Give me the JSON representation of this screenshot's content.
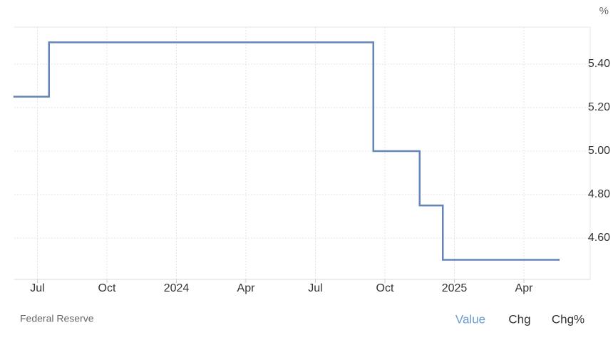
{
  "chart_data": {
    "type": "line",
    "step": true,
    "unit": "%",
    "x": [
      "2023-06",
      "2023-07",
      "2024-09",
      "2024-11",
      "2024-12",
      "2025-05"
    ],
    "values": [
      5.25,
      5.5,
      5.0,
      4.75,
      4.5,
      4.5
    ],
    "color": "#6585b8",
    "xlim": [
      "2023-06",
      "2025-06"
    ],
    "xticks": [
      {
        "value": "2023-07",
        "label": "Jul"
      },
      {
        "value": "2023-10",
        "label": "Oct"
      },
      {
        "value": "2024-01",
        "label": "2024"
      },
      {
        "value": "2024-04",
        "label": "Apr"
      },
      {
        "value": "2024-07",
        "label": "Jul"
      },
      {
        "value": "2024-10",
        "label": "Oct"
      },
      {
        "value": "2025-01",
        "label": "2025"
      },
      {
        "value": "2025-04",
        "label": "Apr"
      }
    ],
    "ylim": [
      4.41,
      5.57
    ],
    "yticks": [
      {
        "value": 4.6,
        "label": "4.60"
      },
      {
        "value": 4.8,
        "label": "4.80"
      },
      {
        "value": 5.0,
        "label": "5.00"
      },
      {
        "value": 5.2,
        "label": "5.20"
      },
      {
        "value": 5.4,
        "label": "5.40"
      }
    ],
    "grid": true,
    "source": "Federal Reserve",
    "tabs": [
      "Value",
      "Chg",
      "Chg%"
    ],
    "active_tab": 0
  }
}
